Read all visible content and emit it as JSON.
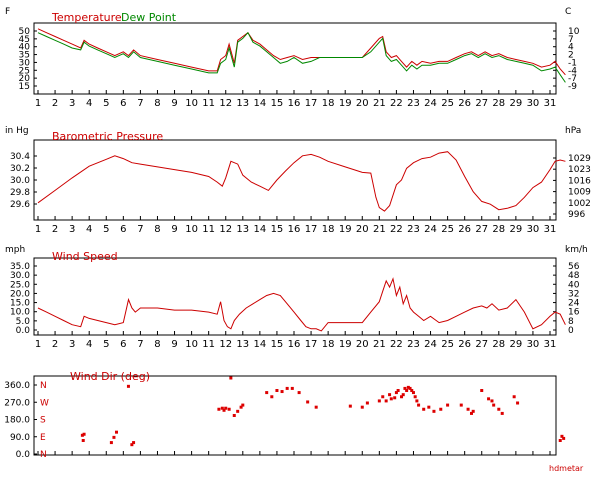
{
  "watermark": "hdmetar",
  "colors": {
    "temp": "#cc0000",
    "dew": "#008800",
    "axis": "#000000",
    "grid": "#000000"
  },
  "day_labels": [
    "1",
    "2",
    "3",
    "4",
    "5",
    "6",
    "7",
    "8",
    "9",
    "10",
    "11",
    "12",
    "13",
    "14",
    "15",
    "16",
    "17",
    "18",
    "19",
    "20",
    "21",
    "22",
    "23",
    "24",
    "25",
    "26",
    "27",
    "28",
    "29",
    "30",
    "31"
  ],
  "chart_data": [
    {
      "type": "line",
      "title": "Temperature",
      "title2": "Dew Point",
      "ylabel_left": "F",
      "ylabel_right": "C",
      "yticks_left": [
        "50",
        "45",
        "40",
        "35",
        "30",
        "25",
        "20",
        "15"
      ],
      "yticks_right": [
        "10",
        "7",
        "4",
        "2",
        "-1",
        "-4",
        "-7",
        "-9"
      ],
      "ylim": [
        15,
        50
      ],
      "series": [
        {
          "name": "Temperature",
          "color": "#cc0000",
          "x": [
            1,
            1.5,
            2,
            2.5,
            3,
            3.5,
            3.7,
            4,
            4.5,
            5,
            5.5,
            6,
            6.3,
            6.6,
            7,
            8,
            9,
            10,
            11,
            11.5,
            11.7,
            12,
            12.2,
            12.5,
            12.7,
            13,
            13.3,
            13.6,
            14,
            14.4,
            14.8,
            15.2,
            15.6,
            16,
            16.5,
            17,
            17.5,
            18,
            19,
            20,
            20.5,
            21,
            21.2,
            21.4,
            21.7,
            22,
            22.3,
            22.6,
            22.9,
            23.2,
            23.5,
            24,
            24.5,
            25,
            25.5,
            26,
            26.4,
            26.8,
            27.2,
            27.6,
            28,
            28.5,
            29,
            29.5,
            30,
            30.5,
            31,
            31.3,
            31.6,
            31.9
          ],
          "y": [
            48,
            46,
            44,
            42,
            40,
            38,
            42,
            40,
            38,
            36,
            34,
            36,
            34,
            37,
            34,
            32,
            30,
            28,
            26,
            26,
            32,
            34,
            40,
            30,
            42,
            44,
            46,
            42,
            40,
            37,
            34,
            32,
            33,
            34,
            32,
            33,
            33,
            33,
            33,
            33,
            38,
            43,
            44,
            36,
            33,
            34,
            31,
            28,
            31,
            29,
            31,
            30,
            31,
            31,
            33,
            35,
            36,
            34,
            36,
            34,
            35,
            33,
            32,
            31,
            30,
            28,
            29,
            31,
            27,
            24
          ]
        },
        {
          "name": "Dew Point",
          "color": "#008800",
          "x": [
            1,
            1.5,
            2,
            2.5,
            3,
            3.5,
            3.7,
            4,
            4.5,
            5,
            5.5,
            6,
            6.3,
            6.6,
            7,
            8,
            9,
            10,
            11,
            11.5,
            11.7,
            12,
            12.2,
            12.5,
            12.7,
            13,
            13.3,
            13.6,
            14,
            14.4,
            14.8,
            15.2,
            15.6,
            16,
            16.5,
            17,
            17.5,
            18,
            19,
            20,
            20.5,
            21,
            21.2,
            21.4,
            21.7,
            22,
            22.3,
            22.6,
            22.9,
            23.2,
            23.5,
            24,
            24.5,
            25,
            25.5,
            26,
            26.4,
            26.8,
            27.2,
            27.6,
            28,
            28.5,
            29,
            29.5,
            30,
            30.5,
            31,
            31.3,
            31.6,
            31.9
          ],
          "y": [
            46,
            44,
            42,
            40,
            38,
            37,
            41,
            39,
            37,
            35,
            33,
            35,
            33,
            36,
            33,
            31,
            29,
            27,
            25,
            25,
            30,
            32,
            38,
            28,
            41,
            43,
            46,
            41,
            39,
            36,
            33,
            30,
            31,
            33,
            30,
            31,
            33,
            33,
            33,
            33,
            36,
            41,
            43,
            34,
            31,
            32,
            29,
            26,
            29,
            27,
            29,
            29,
            30,
            30,
            32,
            34,
            35,
            33,
            35,
            33,
            34,
            32,
            31,
            30,
            29,
            26,
            27,
            28,
            24,
            20
          ]
        }
      ]
    },
    {
      "type": "line",
      "title": "Barometric Pressure",
      "ylabel_left": "in Hg",
      "ylabel_right": "hPa",
      "yticks_left": [
        "30.4",
        "30.2",
        "30.0",
        "29.8",
        "29.6"
      ],
      "yticks_right": [
        "1029",
        "1023",
        "1016",
        "1009",
        "1002",
        "996"
      ],
      "ylim": [
        29.4,
        30.5
      ],
      "series": [
        {
          "name": "Barometric Pressure",
          "color": "#cc0000",
          "x": [
            1,
            2,
            3,
            4,
            5,
            5.5,
            6,
            6.5,
            7,
            8,
            9,
            10,
            11,
            11.5,
            11.8,
            12,
            12.3,
            12.7,
            13,
            13.5,
            14,
            14.5,
            15,
            15.5,
            16,
            16.5,
            17,
            17.5,
            18,
            19,
            20,
            20.5,
            20.8,
            21,
            21.3,
            21.6,
            22,
            22.3,
            22.6,
            23,
            23.5,
            24,
            24.5,
            25,
            25.5,
            26,
            26.5,
            27,
            27.5,
            28,
            28.5,
            29,
            29.5,
            30,
            30.5,
            31,
            31.3,
            31.6,
            31.9
          ],
          "y": [
            29.62,
            29.8,
            29.98,
            30.15,
            30.25,
            30.3,
            30.26,
            30.2,
            30.18,
            30.14,
            30.1,
            30.06,
            30.0,
            29.92,
            29.86,
            29.98,
            30.22,
            30.18,
            30.02,
            29.92,
            29.86,
            29.8,
            29.95,
            30.08,
            30.2,
            30.3,
            30.32,
            30.28,
            30.22,
            30.14,
            30.06,
            30.05,
            29.7,
            29.55,
            29.5,
            29.58,
            29.88,
            29.95,
            30.12,
            30.2,
            30.26,
            30.28,
            30.34,
            30.36,
            30.24,
            30.0,
            29.78,
            29.64,
            29.6,
            29.52,
            29.54,
            29.58,
            29.7,
            29.84,
            29.92,
            30.1,
            30.22,
            30.24,
            30.22
          ]
        }
      ]
    },
    {
      "type": "line",
      "title": "Wind Speed",
      "ylabel_left": "mph",
      "ylabel_right": "km/h",
      "yticks_left": [
        "35.0",
        "30.0",
        "25.0",
        "20.0",
        "15.0",
        "10.0",
        "5.0",
        "0.0"
      ],
      "yticks_right": [
        "56",
        "48",
        "40",
        "32",
        "24",
        "16",
        "8",
        "0"
      ],
      "ylim": [
        0,
        35
      ],
      "series": [
        {
          "name": "Wind Speed",
          "color": "#cc0000",
          "x": [
            1,
            1.5,
            2,
            2.5,
            3,
            3.5,
            3.7,
            4,
            4.5,
            5,
            5.5,
            6,
            6.3,
            6.5,
            6.7,
            7,
            8,
            9,
            10,
            11,
            11.5,
            11.7,
            11.9,
            12.1,
            12.3,
            12.5,
            12.8,
            13.2,
            13.6,
            14,
            14.4,
            14.8,
            15.2,
            15.6,
            16,
            16.4,
            16.7,
            17,
            17.3,
            17.6,
            18,
            19,
            20,
            20.5,
            21,
            21.2,
            21.4,
            21.6,
            21.8,
            22,
            22.2,
            22.4,
            22.6,
            22.8,
            23,
            23.3,
            23.6,
            24,
            24.5,
            25,
            25.5,
            26,
            26.5,
            27,
            27.3,
            27.6,
            28,
            28.5,
            29,
            29.5,
            30,
            30.5,
            31,
            31.3,
            31.6,
            31.9
          ],
          "y": [
            12,
            10,
            8,
            6,
            4,
            3,
            8,
            7,
            6,
            5,
            4,
            5,
            16,
            12,
            10,
            12,
            12,
            11,
            11,
            10,
            9,
            15,
            6,
            3,
            2,
            6,
            9,
            12,
            14,
            16,
            18,
            19,
            18,
            14,
            10,
            6,
            3,
            2,
            2,
            1,
            5,
            5,
            5,
            10,
            15,
            20,
            25,
            22,
            26,
            18,
            22,
            14,
            18,
            12,
            10,
            8,
            6,
            8,
            5,
            6,
            8,
            10,
            12,
            13,
            12,
            14,
            11,
            12,
            16,
            10,
            2,
            4,
            8,
            10,
            9,
            4
          ]
        }
      ]
    },
    {
      "type": "scatter",
      "title": "Wind Dir (deg)",
      "yticks_left": [
        "360.0",
        "270.0",
        "180.0",
        "90.0",
        "0.0"
      ],
      "compass": [
        "N",
        "W",
        "S",
        "E",
        "N"
      ],
      "ylim": [
        0,
        360
      ],
      "series": [
        {
          "name": "Wind Dir (deg)",
          "color": "#dd0000",
          "x": [
            3.6,
            3.65,
            3.7,
            5.3,
            5.45,
            5.6,
            6.3,
            6.5,
            6.6,
            11.6,
            11.8,
            11.9,
            12.0,
            12.2,
            12.3,
            12.5,
            12.7,
            12.9,
            13.0,
            14.4,
            14.7,
            15.0,
            15.3,
            15.6,
            15.9,
            16.3,
            16.8,
            17.3,
            19.3,
            20.0,
            20.3,
            21.0,
            21.2,
            21.4,
            21.6,
            21.7,
            21.9,
            22.0,
            22.1,
            22.3,
            22.4,
            22.5,
            22.6,
            22.7,
            22.8,
            22.9,
            23.0,
            23.1,
            23.2,
            23.3,
            23.6,
            23.9,
            24.2,
            24.6,
            25.0,
            25.8,
            26.2,
            26.4,
            26.5,
            27.0,
            27.4,
            27.6,
            27.7,
            28.0,
            28.2,
            28.9,
            29.1,
            31.6,
            31.7,
            31.8
          ],
          "y": [
            85,
            60,
            90,
            50,
            75,
            100,
            320,
            40,
            50,
            210,
            215,
            205,
            215,
            210,
            360,
            180,
            200,
            220,
            230,
            290,
            270,
            300,
            295,
            310,
            310,
            290,
            245,
            220,
            225,
            220,
            240,
            250,
            270,
            250,
            280,
            260,
            265,
            290,
            300,
            270,
            280,
            310,
            300,
            315,
            310,
            300,
            290,
            270,
            250,
            230,
            210,
            220,
            200,
            210,
            230,
            230,
            210,
            190,
            200,
            300,
            260,
            250,
            230,
            210,
            190,
            270,
            240,
            60,
            80,
            70
          ]
        }
      ]
    }
  ]
}
